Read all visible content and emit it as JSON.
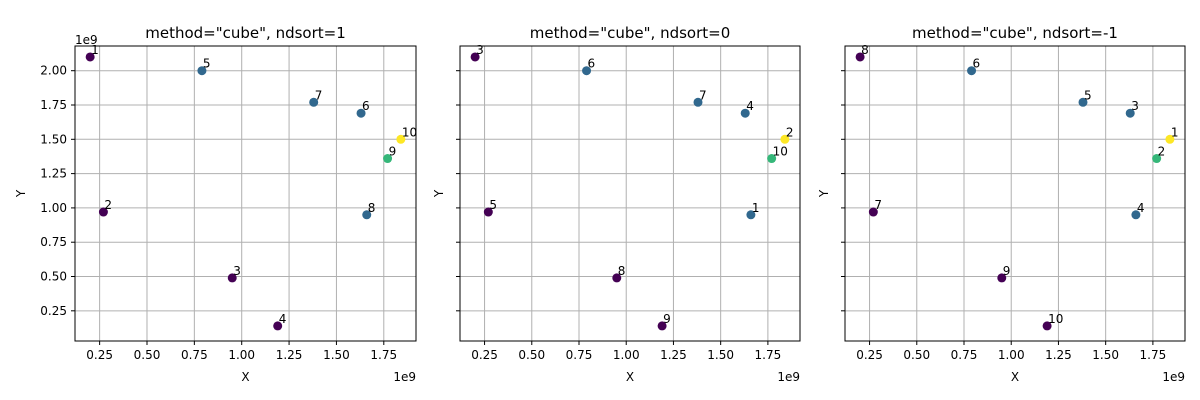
{
  "chart_data": [
    {
      "type": "scatter",
      "title": "method=\"cube\", ndsort=1",
      "xlabel": "X",
      "ylabel": "Y",
      "x_offset_text": "1e9",
      "y_offset_text": "1e9",
      "xlim": [
        0.12,
        1.92
      ],
      "ylim": [
        0.03,
        2.18
      ],
      "xticks": [
        "0.25",
        "0.50",
        "0.75",
        "1.00",
        "1.25",
        "1.50",
        "1.75"
      ],
      "xtick_values": [
        0.25,
        0.5,
        0.75,
        1.0,
        1.25,
        1.5,
        1.75
      ],
      "yticks": [
        "0.25",
        "0.50",
        "0.75",
        "1.00",
        "1.25",
        "1.50",
        "1.75",
        "2.00"
      ],
      "ytick_values": [
        0.25,
        0.5,
        0.75,
        1.0,
        1.25,
        1.5,
        1.75,
        2.0
      ],
      "show_ytick_labels": true,
      "grid": true,
      "points": [
        {
          "label": "1",
          "x": 0.2,
          "y": 2.1,
          "color": "#440154"
        },
        {
          "label": "2",
          "x": 0.27,
          "y": 0.97,
          "color": "#440154"
        },
        {
          "label": "3",
          "x": 0.95,
          "y": 0.49,
          "color": "#440154"
        },
        {
          "label": "4",
          "x": 1.19,
          "y": 0.14,
          "color": "#440154"
        },
        {
          "label": "5",
          "x": 0.79,
          "y": 2.0,
          "color": "#31688e"
        },
        {
          "label": "6",
          "x": 1.63,
          "y": 1.69,
          "color": "#31688e"
        },
        {
          "label": "7",
          "x": 1.38,
          "y": 1.77,
          "color": "#31688e"
        },
        {
          "label": "8",
          "x": 1.66,
          "y": 0.95,
          "color": "#31688e"
        },
        {
          "label": "9",
          "x": 1.77,
          "y": 1.36,
          "color": "#35b779"
        },
        {
          "label": "10",
          "x": 1.84,
          "y": 1.5,
          "color": "#fde725"
        }
      ]
    },
    {
      "type": "scatter",
      "title": "method=\"cube\", ndsort=0",
      "xlabel": "X",
      "ylabel": "Y",
      "x_offset_text": "1e9",
      "y_offset_text": "",
      "xlim": [
        0.12,
        1.92
      ],
      "ylim": [
        0.03,
        2.18
      ],
      "xticks": [
        "0.25",
        "0.50",
        "0.75",
        "1.00",
        "1.25",
        "1.50",
        "1.75"
      ],
      "xtick_values": [
        0.25,
        0.5,
        0.75,
        1.0,
        1.25,
        1.5,
        1.75
      ],
      "yticks": [
        "",
        "",
        "",
        "",
        "",
        "",
        "",
        ""
      ],
      "ytick_values": [
        0.25,
        0.5,
        0.75,
        1.0,
        1.25,
        1.5,
        1.75,
        2.0
      ],
      "show_ytick_labels": false,
      "grid": true,
      "points": [
        {
          "label": "3",
          "x": 0.2,
          "y": 2.1,
          "color": "#440154"
        },
        {
          "label": "5",
          "x": 0.27,
          "y": 0.97,
          "color": "#440154"
        },
        {
          "label": "8",
          "x": 0.95,
          "y": 0.49,
          "color": "#440154"
        },
        {
          "label": "9",
          "x": 1.19,
          "y": 0.14,
          "color": "#440154"
        },
        {
          "label": "6",
          "x": 0.79,
          "y": 2.0,
          "color": "#31688e"
        },
        {
          "label": "4",
          "x": 1.63,
          "y": 1.69,
          "color": "#31688e"
        },
        {
          "label": "7",
          "x": 1.38,
          "y": 1.77,
          "color": "#31688e"
        },
        {
          "label": "1",
          "x": 1.66,
          "y": 0.95,
          "color": "#31688e"
        },
        {
          "label": "10",
          "x": 1.77,
          "y": 1.36,
          "color": "#35b779"
        },
        {
          "label": "2",
          "x": 1.84,
          "y": 1.5,
          "color": "#fde725"
        }
      ]
    },
    {
      "type": "scatter",
      "title": "method=\"cube\", ndsort=-1",
      "xlabel": "X",
      "ylabel": "Y",
      "x_offset_text": "1e9",
      "y_offset_text": "",
      "xlim": [
        0.12,
        1.92
      ],
      "ylim": [
        0.03,
        2.18
      ],
      "xticks": [
        "0.25",
        "0.50",
        "0.75",
        "1.00",
        "1.25",
        "1.50",
        "1.75"
      ],
      "xtick_values": [
        0.25,
        0.5,
        0.75,
        1.0,
        1.25,
        1.5,
        1.75
      ],
      "yticks": [
        "",
        "",
        "",
        "",
        "",
        "",
        "",
        ""
      ],
      "ytick_values": [
        0.25,
        0.5,
        0.75,
        1.0,
        1.25,
        1.5,
        1.75,
        2.0
      ],
      "show_ytick_labels": false,
      "grid": true,
      "points": [
        {
          "label": "8",
          "x": 0.2,
          "y": 2.1,
          "color": "#440154"
        },
        {
          "label": "7",
          "x": 0.27,
          "y": 0.97,
          "color": "#440154"
        },
        {
          "label": "9",
          "x": 0.95,
          "y": 0.49,
          "color": "#440154"
        },
        {
          "label": "10",
          "x": 1.19,
          "y": 0.14,
          "color": "#440154"
        },
        {
          "label": "6",
          "x": 0.79,
          "y": 2.0,
          "color": "#31688e"
        },
        {
          "label": "3",
          "x": 1.63,
          "y": 1.69,
          "color": "#31688e"
        },
        {
          "label": "5",
          "x": 1.38,
          "y": 1.77,
          "color": "#31688e"
        },
        {
          "label": "4",
          "x": 1.66,
          "y": 0.95,
          "color": "#31688e"
        },
        {
          "label": "2",
          "x": 1.77,
          "y": 1.36,
          "color": "#35b779"
        },
        {
          "label": "1",
          "x": 1.84,
          "y": 1.5,
          "color": "#fde725"
        }
      ]
    }
  ]
}
